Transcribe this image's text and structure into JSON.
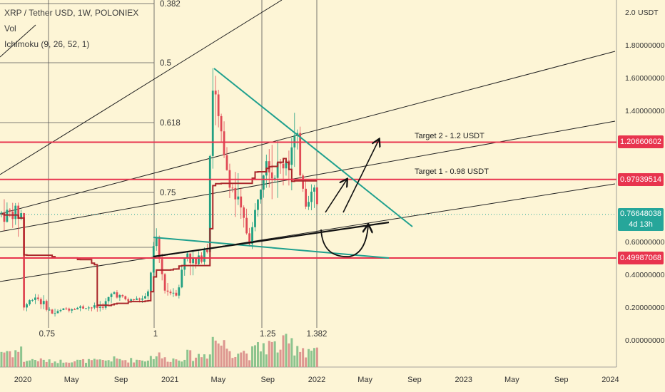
{
  "header": {
    "symbol": "XRP / Tether USD, 1W, POLONIEX",
    "volume": "Vol",
    "indicator": "Ichimoku (9, 26, 52, 1)"
  },
  "chart_data": {
    "type": "candlestick",
    "symbol": "XRP / Tether USD",
    "timeframe": "1W",
    "exchange": "POLONIEX",
    "y_axis": {
      "currency": "USDT",
      "ticks": [
        "2.0",
        "1.80000000",
        "1.60000000",
        "1.40000000",
        "0.60000000",
        "0.40000000",
        "0.20000000",
        "0.00000000"
      ],
      "tick_values": [
        2.0,
        1.8,
        1.6,
        1.4,
        0.6,
        0.4,
        0.2,
        0.0
      ],
      "range": [
        -0.1,
        2.05
      ]
    },
    "x_axis": {
      "ticks": [
        "2020",
        "May",
        "Sep",
        "2021",
        "May",
        "Sep",
        "2022",
        "May",
        "Sep",
        "2023",
        "May",
        "Sep",
        "2024"
      ],
      "tick_dates": [
        "2020-01-01",
        "2020-05-01",
        "2020-09-01",
        "2021-01-01",
        "2021-05-01",
        "2021-09-01",
        "2022-01-01",
        "2022-05-01",
        "2022-09-01",
        "2023-01-01",
        "2023-05-01",
        "2023-09-01",
        "2024-01-01"
      ]
    },
    "price_levels": [
      {
        "value": 1.20660602,
        "label": "1.20660602",
        "annotation": "Target 2  - 1.2 USDT",
        "color": "#e8344e"
      },
      {
        "value": 0.97939514,
        "label": "0.97939514",
        "annotation": "Target 1  - 0.98 USDT",
        "color": "#e8344e"
      },
      {
        "value": 0.49987068,
        "label": "0.49987068",
        "annotation": "",
        "color": "#e8344e"
      }
    ],
    "current_price": {
      "value": 0.76648038,
      "label": "0.76648038",
      "countdown": "4d 13h",
      "color": "#26a69a"
    },
    "fib_levels": [
      {
        "label": "0.382",
        "value": 2.05
      },
      {
        "label": "0.5",
        "value": 1.7
      },
      {
        "label": "0.618",
        "value": 1.36
      },
      {
        "label": "0.75",
        "value": 0.88
      }
    ],
    "fib_time_labels": [
      {
        "label": "0.75",
        "date": "2020-03-01"
      },
      {
        "label": "1",
        "date": "2020-12-15"
      },
      {
        "label": "1.25",
        "date": "2021-09-01"
      },
      {
        "label": "1.382",
        "date": "2022-01-01"
      }
    ],
    "price_series": [
      [
        "2020-01-01",
        0.195
      ],
      [
        "2020-02-01",
        0.27
      ],
      [
        "2020-03-15",
        0.16
      ],
      [
        "2020-04-15",
        0.19
      ],
      [
        "2020-06-01",
        0.2
      ],
      [
        "2020-07-15",
        0.2
      ],
      [
        "2020-08-15",
        0.29
      ],
      [
        "2020-09-15",
        0.24
      ],
      [
        "2020-10-15",
        0.25
      ],
      [
        "2020-11-05",
        0.25
      ],
      [
        "2020-11-25",
        0.62
      ],
      [
        "2020-12-20",
        0.3
      ],
      [
        "2021-01-20",
        0.29
      ],
      [
        "2021-02-10",
        0.55
      ],
      [
        "2021-03-05",
        0.45
      ],
      [
        "2021-04-05",
        0.6
      ],
      [
        "2021-04-15",
        1.6
      ],
      [
        "2021-05-15",
        1.1
      ],
      [
        "2021-06-15",
        0.85
      ],
      [
        "2021-07-20",
        0.6
      ],
      [
        "2021-08-10",
        0.92
      ],
      [
        "2021-08-25",
        1.2
      ],
      [
        "2021-09-15",
        1.0
      ],
      [
        "2021-10-15",
        1.1
      ],
      [
        "2021-11-10",
        1.2
      ],
      [
        "2021-12-05",
        0.85
      ],
      [
        "2021-12-25",
        0.92
      ],
      [
        "2022-01-07",
        0.77
      ]
    ],
    "annotations": [
      {
        "text": "Target 2  - 1.2 USDT",
        "value": 1.2
      },
      {
        "text": "Target 1  - 0.98 USDT",
        "value": 0.98
      }
    ]
  }
}
